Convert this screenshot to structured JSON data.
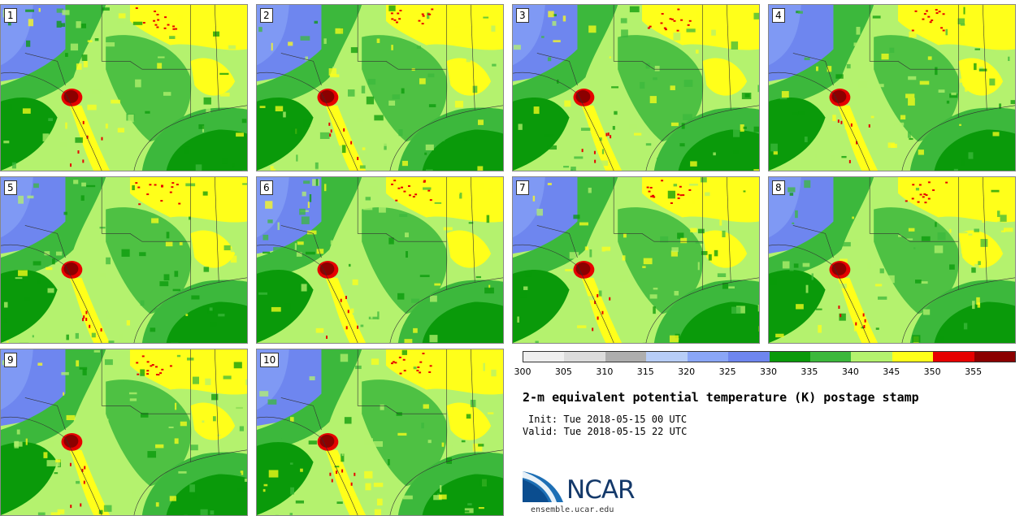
{
  "title": "2-m equivalent potential temperature (K) postage stamp",
  "init": "Init: Tue 2018-05-15 00 UTC",
  "valid": "Valid: Tue 2018-05-15 22 UTC",
  "members": [
    "1",
    "2",
    "3",
    "4",
    "5",
    "6",
    "7",
    "8",
    "9",
    "10"
  ],
  "colorbar": {
    "colors": [
      "#efefef",
      "#dcdcdc",
      "#aeaeae",
      "#b7cdf7",
      "#8aa6f7",
      "#6e86ef",
      "#0a9a0a",
      "#3cb83c",
      "#b4f26e",
      "#ffff1a",
      "#e60000",
      "#8b0000"
    ],
    "ticks": [
      "300",
      "305",
      "310",
      "315",
      "320",
      "325",
      "330",
      "335",
      "340",
      "345",
      "350",
      "355"
    ]
  },
  "logo": {
    "text": "NCAR",
    "url": "ensemble.ucar.edu"
  }
}
